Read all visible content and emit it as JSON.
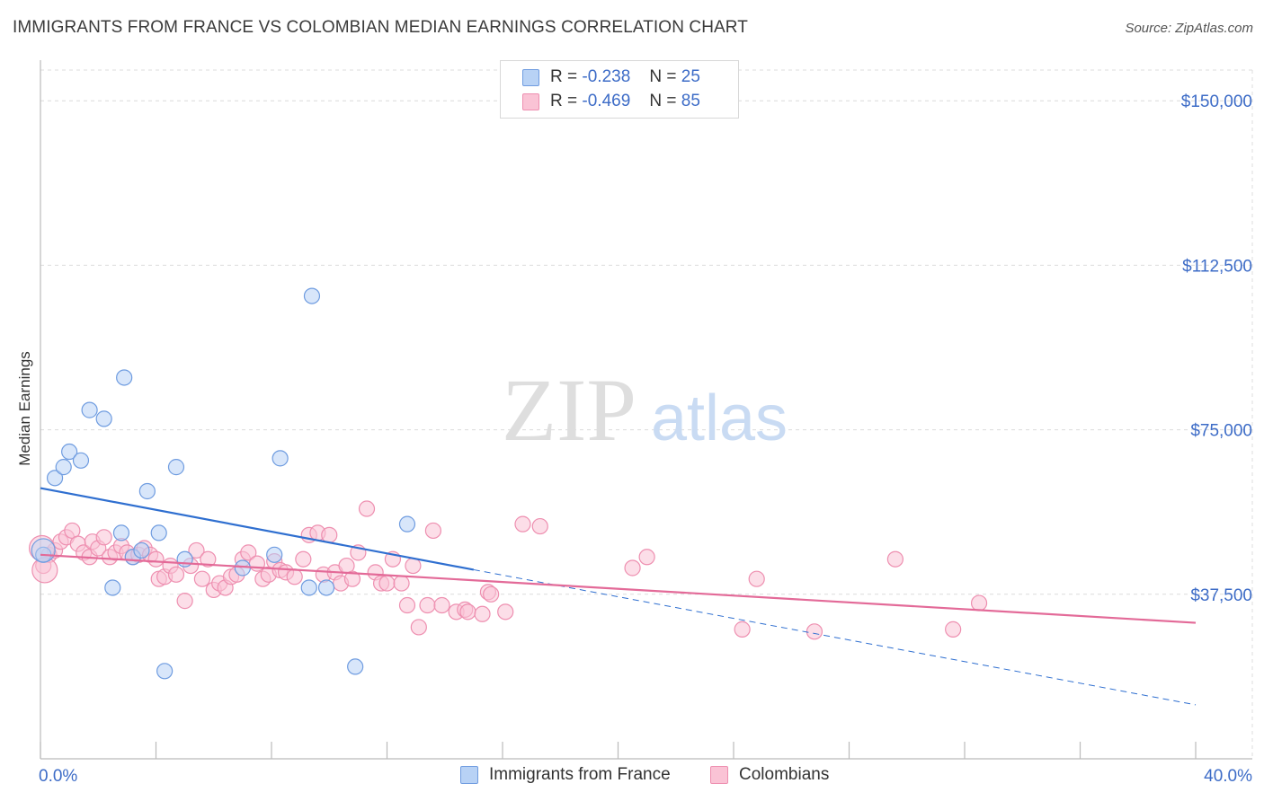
{
  "title": "IMMIGRANTS FROM FRANCE VS COLOMBIAN MEDIAN EARNINGS CORRELATION CHART",
  "source": "Source: ZipAtlas.com",
  "watermark": {
    "zip": "ZIP",
    "atlas": "atlas"
  },
  "legend_top": {
    "r_label": "R =",
    "n_label": "N =",
    "rows": [
      {
        "r": "-0.238",
        "n": "25",
        "fill": "#b8d2f5",
        "stroke": "#6f9ce0"
      },
      {
        "r": "-0.469",
        "n": "85",
        "fill": "#fac3d5",
        "stroke": "#ee8fb0"
      }
    ]
  },
  "chart_data": {
    "type": "scatter",
    "title": "IMMIGRANTS FROM FRANCE VS COLOMBIAN MEDIAN EARNINGS CORRELATION CHART",
    "xlabel": "",
    "ylabel": "Median Earnings",
    "xlim": [
      0,
      40
    ],
    "ylim": [
      0,
      157000
    ],
    "x_tick_labels": [
      "0.0%",
      "40.0%"
    ],
    "y_ticks": [
      {
        "value": 37500,
        "label": "$37,500"
      },
      {
        "value": 75000,
        "label": "$75,000"
      },
      {
        "value": 112500,
        "label": "$112,500"
      },
      {
        "value": 150000,
        "label": "$150,000"
      }
    ],
    "series": [
      {
        "name": "Immigrants from France",
        "fill": "#b8d2f5",
        "stroke": "#6f9ce0",
        "line_color": "#2f6fd0",
        "trend": {
          "x_start": 0,
          "y_start": 61700,
          "x_solid_end": 15,
          "y_solid_end": 43100,
          "x_end": 40,
          "y_end": 12300
        },
        "points": [
          [
            0.1,
            46500
          ],
          [
            0.5,
            64000
          ],
          [
            0.8,
            66500
          ],
          [
            1.0,
            70000
          ],
          [
            1.4,
            68000
          ],
          [
            1.7,
            79500
          ],
          [
            2.2,
            77500
          ],
          [
            2.5,
            39000
          ],
          [
            2.8,
            51500
          ],
          [
            2.9,
            86900
          ],
          [
            3.2,
            46000
          ],
          [
            3.5,
            47500
          ],
          [
            3.7,
            61000
          ],
          [
            4.1,
            51500
          ],
          [
            4.3,
            20000
          ],
          [
            4.7,
            66500
          ],
          [
            5.0,
            45500
          ],
          [
            7.0,
            43500
          ],
          [
            8.1,
            46500
          ],
          [
            8.3,
            68500
          ],
          [
            9.3,
            39000
          ],
          [
            9.4,
            105500
          ],
          [
            9.9,
            39000
          ],
          [
            10.9,
            21000
          ],
          [
            12.7,
            53500
          ]
        ]
      },
      {
        "name": "Colombians",
        "fill": "#fac3d5",
        "stroke": "#ee8fb0",
        "line_color": "#e36a98",
        "trend": {
          "x_start": 0,
          "y_start": 46500,
          "x_end": 40,
          "y_end": 31000
        },
        "points": [
          [
            0.1,
            44000
          ],
          [
            0.3,
            46500
          ],
          [
            0.5,
            47500
          ],
          [
            0.7,
            49500
          ],
          [
            0.9,
            50500
          ],
          [
            1.1,
            52000
          ],
          [
            1.3,
            49000
          ],
          [
            1.5,
            47000
          ],
          [
            1.7,
            46000
          ],
          [
            1.8,
            49500
          ],
          [
            2.0,
            48000
          ],
          [
            2.2,
            50500
          ],
          [
            2.4,
            46000
          ],
          [
            2.6,
            47000
          ],
          [
            2.8,
            48500
          ],
          [
            3.0,
            47000
          ],
          [
            3.2,
            46000
          ],
          [
            3.4,
            46500
          ],
          [
            3.6,
            48000
          ],
          [
            3.8,
            46500
          ],
          [
            4.0,
            45500
          ],
          [
            4.1,
            41000
          ],
          [
            4.3,
            41500
          ],
          [
            4.5,
            44000
          ],
          [
            4.7,
            42000
          ],
          [
            5.0,
            36000
          ],
          [
            5.2,
            44000
          ],
          [
            5.4,
            47500
          ],
          [
            5.6,
            41000
          ],
          [
            5.8,
            45500
          ],
          [
            6.0,
            38500
          ],
          [
            6.2,
            40000
          ],
          [
            6.4,
            39000
          ],
          [
            6.6,
            41500
          ],
          [
            6.8,
            42000
          ],
          [
            7.0,
            45500
          ],
          [
            7.2,
            47000
          ],
          [
            7.5,
            44500
          ],
          [
            7.7,
            41000
          ],
          [
            7.9,
            42000
          ],
          [
            8.1,
            45000
          ],
          [
            8.3,
            43000
          ],
          [
            8.5,
            42500
          ],
          [
            8.8,
            41500
          ],
          [
            9.1,
            45500
          ],
          [
            9.3,
            51000
          ],
          [
            9.6,
            51500
          ],
          [
            9.8,
            42000
          ],
          [
            10.0,
            51000
          ],
          [
            10.2,
            42500
          ],
          [
            10.4,
            40000
          ],
          [
            10.6,
            44000
          ],
          [
            10.8,
            41000
          ],
          [
            11.0,
            47000
          ],
          [
            11.3,
            57000
          ],
          [
            11.6,
            42500
          ],
          [
            11.8,
            40000
          ],
          [
            12.0,
            40000
          ],
          [
            12.2,
            45500
          ],
          [
            12.5,
            40000
          ],
          [
            12.7,
            35000
          ],
          [
            12.9,
            44000
          ],
          [
            13.1,
            30000
          ],
          [
            13.4,
            35000
          ],
          [
            13.6,
            52000
          ],
          [
            13.9,
            35000
          ],
          [
            14.4,
            33500
          ],
          [
            14.7,
            34000
          ],
          [
            14.8,
            33500
          ],
          [
            15.3,
            33000
          ],
          [
            15.5,
            38000
          ],
          [
            15.6,
            37500
          ],
          [
            16.1,
            33500
          ],
          [
            16.7,
            53500
          ],
          [
            17.3,
            53000
          ],
          [
            20.5,
            43500
          ],
          [
            21.0,
            46000
          ],
          [
            24.3,
            29500
          ],
          [
            24.8,
            41000
          ],
          [
            26.8,
            29000
          ],
          [
            29.6,
            45500
          ],
          [
            31.6,
            29500
          ],
          [
            32.5,
            35500
          ],
          [
            0.05,
            48000
          ],
          [
            0.15,
            43000
          ]
        ]
      }
    ]
  },
  "legend_bottom": [
    {
      "label": "Immigrants from France",
      "fill": "#b8d2f5",
      "stroke": "#6f9ce0"
    },
    {
      "label": "Colombians",
      "fill": "#fac3d5",
      "stroke": "#ee8fb0"
    }
  ]
}
